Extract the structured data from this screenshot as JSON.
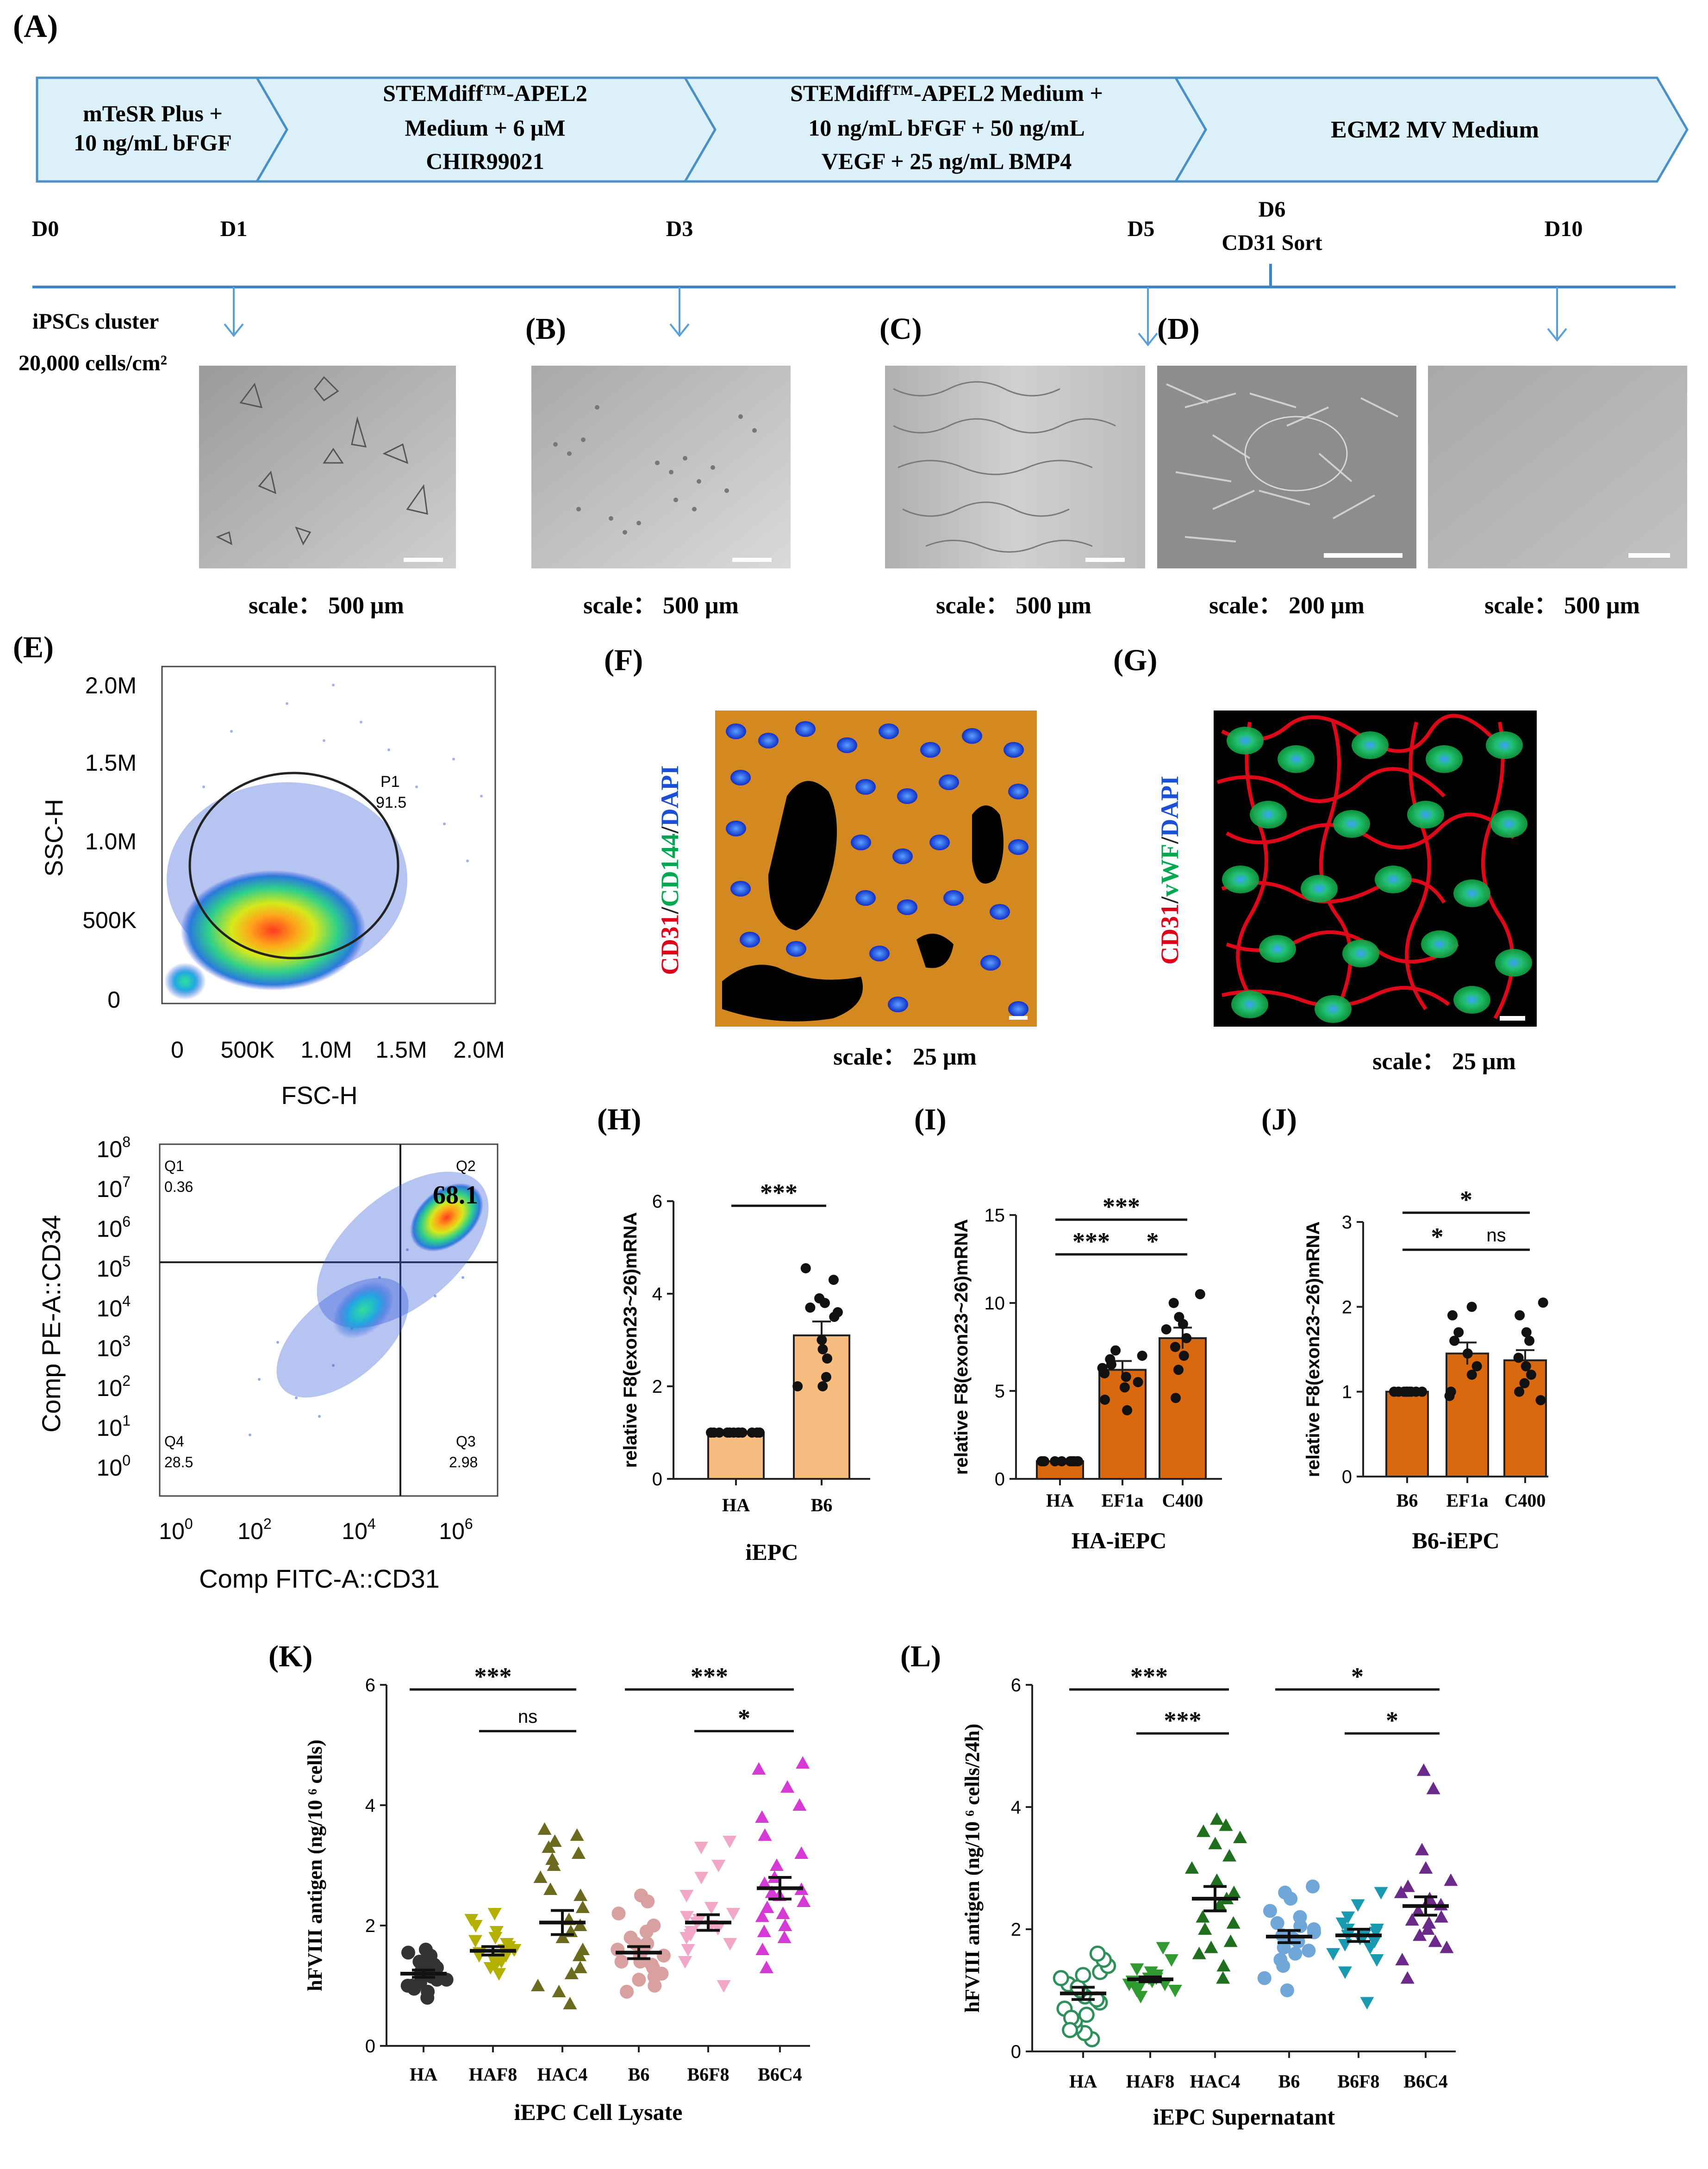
{
  "panel_labels": {
    "A": "(A)",
    "B": "(B)",
    "C": "(C)",
    "D": "(D)",
    "E": "(E)",
    "F": "(F)",
    "G": "(G)",
    "H": "(H)",
    "I": "(I)",
    "J": "(J)",
    "K": "(K)",
    "L": "(L)"
  },
  "timeline": {
    "stages": [
      {
        "line1": "mTeSR Plus +",
        "line2": "10 ng/mL bFGF",
        "line3": ""
      },
      {
        "line1": "STEMdiff™-APEL2",
        "line2": "Medium + 6 μM",
        "line3": "CHIR99021"
      },
      {
        "line1": "STEMdiff™-APEL2 Medium +",
        "line2": "10 ng/mL bFGF + 50 ng/mL",
        "line3": "VEGF + 25 ng/mL BMP4"
      },
      {
        "line1": "EGM2 MV Medium",
        "line2": "",
        "line3": ""
      }
    ],
    "days": {
      "d0": "D0",
      "d1": "D1",
      "d3": "D3",
      "d5": "D5",
      "d6": "D6",
      "d6_sub": "CD31 Sort",
      "d10": "D10"
    },
    "seed_line1": "iPSCs cluster",
    "seed_line2": "20,000 cells/cm²"
  },
  "micrographs": [
    {
      "scale": "scale： 500 μm"
    },
    {
      "scale": "scale： 500 μm"
    },
    {
      "scale": "scale： 500 μm"
    },
    {
      "scale": "scale： 200 μm"
    },
    {
      "scale": "scale： 500 μm"
    }
  ],
  "flow_scatter": {
    "ylabel": "SSC-H",
    "xlabel": "FSC-H",
    "yticks": [
      "2.0M",
      "1.5M",
      "1.0M",
      "500K",
      "0"
    ],
    "xticks": [
      "0",
      "500K",
      "1.0M",
      "1.5M",
      "2.0M"
    ],
    "gate_name": "P1",
    "gate_value": "91.5"
  },
  "flow_quad": {
    "ylabel": "Comp PE-A::CD34",
    "xlabel": "Comp FITC-A::CD31",
    "q1": "Q1",
    "q1v": "0.36",
    "q2": "Q2",
    "q2v": "68.1",
    "q3": "Q3",
    "q3v": "2.98",
    "q4": "Q4",
    "q4v": "28.5",
    "yticks": [
      {
        "b": "10",
        "e": "8"
      },
      {
        "b": "10",
        "e": "7"
      },
      {
        "b": "10",
        "e": "6"
      },
      {
        "b": "10",
        "e": "5"
      },
      {
        "b": "10",
        "e": "4"
      },
      {
        "b": "10",
        "e": "3"
      },
      {
        "b": "10",
        "e": "2"
      },
      {
        "b": "10",
        "e": "1"
      },
      {
        "b": "10",
        "e": "0"
      }
    ],
    "xticks": [
      {
        "b": "10",
        "e": "0"
      },
      {
        "b": "10",
        "e": "2"
      },
      {
        "b": "10",
        "e": "4"
      },
      {
        "b": "10",
        "e": "6"
      }
    ]
  },
  "if_panels": [
    {
      "label_a": "CD31",
      "sep": "/",
      "label_b": "CD144",
      "sep2": "/",
      "label_c": "DAPI",
      "scale": "scale： 25 μm"
    },
    {
      "label_a": "CD31",
      "sep": "/",
      "label_b": "vWF",
      "sep2": "/",
      "label_c": "DAPI",
      "scale": "scale： 25 μm"
    }
  ],
  "colors": {
    "stage_fill": "#dcf0fa",
    "stage_stroke": "#4a90c8",
    "timeline": "#3a86c8",
    "bar_h": "#f7bd7f",
    "bar_ij": "#d9680e",
    "red": "#e0001a",
    "green": "#00a84f",
    "blue": "#1a4fd6"
  },
  "chart_data": [
    {
      "type": "bar",
      "panel": "H",
      "ylabel": "relative F8(exon23~26)mRNA",
      "xlabel": "iEPC",
      "categories": [
        "HA",
        "B6"
      ],
      "values": [
        1.0,
        3.1
      ],
      "sem": [
        0.0,
        0.3
      ],
      "ylim": [
        0,
        6
      ],
      "yticks": [
        "0",
        "2",
        "4",
        "6"
      ],
      "points": [
        [
          1,
          1,
          1,
          1,
          1,
          1,
          1,
          1,
          1,
          1,
          1,
          1
        ],
        [
          4.55,
          4.3,
          3.8,
          3.9,
          3.7,
          3.6,
          3.5,
          3.0,
          2.8,
          2.0,
          2.0,
          2.2,
          2.6
        ]
      ],
      "sig": [
        {
          "from": 0,
          "to": 1,
          "label": "***"
        }
      ]
    },
    {
      "type": "bar",
      "panel": "I",
      "ylabel": "relative F8(exon23~26)mRNA",
      "xlabel": "HA-iEPC",
      "categories": [
        "HA",
        "EF1a",
        "C400"
      ],
      "values": [
        1.0,
        6.2,
        8.0
      ],
      "sem": [
        0.0,
        0.5,
        0.6
      ],
      "ylim": [
        0,
        15
      ],
      "yticks": [
        "0",
        "5",
        "10",
        "15"
      ],
      "points": [
        [
          1,
          1,
          1,
          1,
          1,
          1,
          1,
          1,
          1,
          1
        ],
        [
          7.3,
          7.0,
          6.8,
          6.5,
          6.3,
          6.0,
          5.8,
          5.5,
          5.2,
          4.5,
          3.9
        ],
        [
          10.5,
          10.0,
          9.2,
          8.8,
          8.5,
          8.0,
          7.5,
          7.0,
          6.2,
          4.6
        ]
      ],
      "sig": [
        {
          "from": 0,
          "to": 2,
          "label": "***"
        },
        {
          "from": 0,
          "to": 1,
          "label": "***"
        },
        {
          "from": 1,
          "to": 2,
          "label": "*"
        }
      ]
    },
    {
      "type": "bar",
      "panel": "J",
      "ylabel": "relative F8(exon23~26)mRNA",
      "xlabel": "B6-iEPC",
      "categories": [
        "B6",
        "EF1a",
        "C400"
      ],
      "values": [
        1.0,
        1.45,
        1.37
      ],
      "sem": [
        0.0,
        0.13,
        0.12
      ],
      "ylim": [
        0,
        3
      ],
      "yticks": [
        "0",
        "1",
        "2",
        "3"
      ],
      "points": [
        [
          1,
          1,
          1,
          1,
          1,
          1,
          1,
          1,
          1,
          1
        ],
        [
          2.0,
          1.9,
          1.7,
          1.6,
          1.45,
          1.3,
          1.2,
          1.0,
          0.95
        ],
        [
          2.05,
          1.9,
          1.7,
          1.6,
          1.4,
          1.3,
          1.2,
          1.1,
          1.0,
          0.9
        ]
      ],
      "sig": [
        {
          "from": 0,
          "to": 2,
          "label": "*"
        },
        {
          "from": 0,
          "to": 1,
          "label": "*"
        },
        {
          "from": 1,
          "to": 2,
          "label": "ns"
        }
      ]
    },
    {
      "type": "scatter",
      "panel": "K",
      "ylabel": "hFVIII antigen (ng/10 ⁶ cells)",
      "xlabel": "iEPC Cell Lysate",
      "categories": [
        "HA",
        "HAF8",
        "HAC4",
        "B6",
        "B6F8",
        "B6C4"
      ],
      "means": [
        1.2,
        1.58,
        2.05,
        1.55,
        2.05,
        2.62
      ],
      "sem": [
        0.06,
        0.07,
        0.2,
        0.1,
        0.13,
        0.18
      ],
      "ylim": [
        0,
        6
      ],
      "yticks": [
        "0",
        "2",
        "4",
        "6"
      ],
      "marker_colors": [
        "#333333",
        "#b4b000",
        "#6b6a1f",
        "#d9a0a0",
        "#f2a6c8",
        "#d63ad6"
      ],
      "markers": [
        "circle",
        "tri-down",
        "tri-up",
        "circle",
        "tri-down",
        "tri-up"
      ],
      "points": [
        [
          0.8,
          0.9,
          1.0,
          1.0,
          1.05,
          1.1,
          1.15,
          1.2,
          1.2,
          1.25,
          1.3,
          1.35,
          1.4,
          1.5,
          1.55,
          1.6,
          0.95,
          1.1,
          1.3
        ],
        [
          1.2,
          1.3,
          1.4,
          1.45,
          1.5,
          1.55,
          1.6,
          1.6,
          1.65,
          1.7,
          1.8,
          1.9,
          2.0,
          2.1,
          2.2,
          1.35,
          1.5,
          1.75,
          1.4,
          1.6
        ],
        [
          0.7,
          0.9,
          1.0,
          1.3,
          1.5,
          1.8,
          1.9,
          2.1,
          2.3,
          2.5,
          2.8,
          3.0,
          3.2,
          3.4,
          3.6,
          3.5,
          3.3,
          2.0,
          1.6,
          1.2,
          2.6,
          3.1
        ],
        [
          0.9,
          1.0,
          1.1,
          1.2,
          1.3,
          1.4,
          1.4,
          1.5,
          1.5,
          1.6,
          1.6,
          1.7,
          1.8,
          1.9,
          2.0,
          2.2,
          2.4,
          2.5,
          1.15,
          1.35,
          1.7
        ],
        [
          1.0,
          1.4,
          1.6,
          1.7,
          1.8,
          1.9,
          1.95,
          2.0,
          2.05,
          2.1,
          2.2,
          2.3,
          2.5,
          2.8,
          3.0,
          3.3,
          3.4,
          1.85,
          2.15
        ],
        [
          1.3,
          1.6,
          1.8,
          2.0,
          2.2,
          2.3,
          2.4,
          2.5,
          2.6,
          2.7,
          2.8,
          3.0,
          3.2,
          3.5,
          3.8,
          4.0,
          4.3,
          4.6,
          4.7,
          2.15,
          2.55,
          1.9
        ]
      ],
      "sig": [
        {
          "from": 0,
          "to": 2,
          "label": "***"
        },
        {
          "from": 1,
          "to": 2,
          "label": "ns"
        },
        {
          "from": 3,
          "to": 5,
          "label": "***"
        },
        {
          "from": 4,
          "to": 5,
          "label": "*"
        }
      ]
    },
    {
      "type": "scatter",
      "panel": "L",
      "ylabel": "hFVIII antigen (ng/10 ⁶ cells/24h)",
      "xlabel": "iEPC Supernatant",
      "categories": [
        "HA",
        "HAF8",
        "HAC4",
        "B6",
        "B6F8",
        "B6C4"
      ],
      "means": [
        0.95,
        1.18,
        2.5,
        1.88,
        1.9,
        2.38
      ],
      "sem": [
        0.1,
        0.04,
        0.2,
        0.1,
        0.1,
        0.15
      ],
      "ylim": [
        0,
        6
      ],
      "yticks": [
        "0",
        "2",
        "4",
        "6"
      ],
      "marker_colors": [
        "#2f8f5a",
        "#2f9a2f",
        "#1f6f1f",
        "#6fa8d8",
        "#1a9ab0",
        "#6b2a8a"
      ],
      "markers": [
        "circle-open",
        "tri-down",
        "tri-up",
        "circle",
        "tri-down",
        "tri-up"
      ],
      "points": [
        [
          0.2,
          0.3,
          0.4,
          0.5,
          0.6,
          0.7,
          0.8,
          0.9,
          1.0,
          1.1,
          1.2,
          1.3,
          1.4,
          1.5,
          1.6,
          0.55,
          0.85,
          1.05,
          1.25,
          0.35
        ],
        [
          0.9,
          1.0,
          1.05,
          1.1,
          1.15,
          1.2,
          1.2,
          1.25,
          1.3,
          1.35,
          1.5,
          1.7,
          1.1,
          1.0,
          1.15,
          1.25
        ],
        [
          1.2,
          1.4,
          1.6,
          1.8,
          2.0,
          2.2,
          2.4,
          2.6,
          2.8,
          3.0,
          3.2,
          3.4,
          3.6,
          3.8,
          3.7,
          3.5,
          2.5,
          2.1,
          1.7
        ],
        [
          1.0,
          1.2,
          1.4,
          1.5,
          1.6,
          1.7,
          1.8,
          1.9,
          2.0,
          2.1,
          2.2,
          2.3,
          2.5,
          2.6,
          2.7,
          1.85,
          1.95,
          2.05,
          1.65
        ],
        [
          0.8,
          1.3,
          1.5,
          1.6,
          1.7,
          1.8,
          1.9,
          1.9,
          2.0,
          2.1,
          2.2,
          2.4,
          2.6,
          1.75,
          1.85,
          2.0,
          1.95
        ],
        [
          1.2,
          1.5,
          1.7,
          1.9,
          2.0,
          2.1,
          2.2,
          2.3,
          2.4,
          2.5,
          2.7,
          2.8,
          3.0,
          3.3,
          4.3,
          4.6,
          2.6,
          2.15,
          1.8
        ]
      ],
      "sig": [
        {
          "from": 0,
          "to": 2,
          "label": "***"
        },
        {
          "from": 1,
          "to": 2,
          "label": "***"
        },
        {
          "from": 3,
          "to": 5,
          "label": "*"
        },
        {
          "from": 4,
          "to": 5,
          "label": "*"
        }
      ]
    }
  ]
}
